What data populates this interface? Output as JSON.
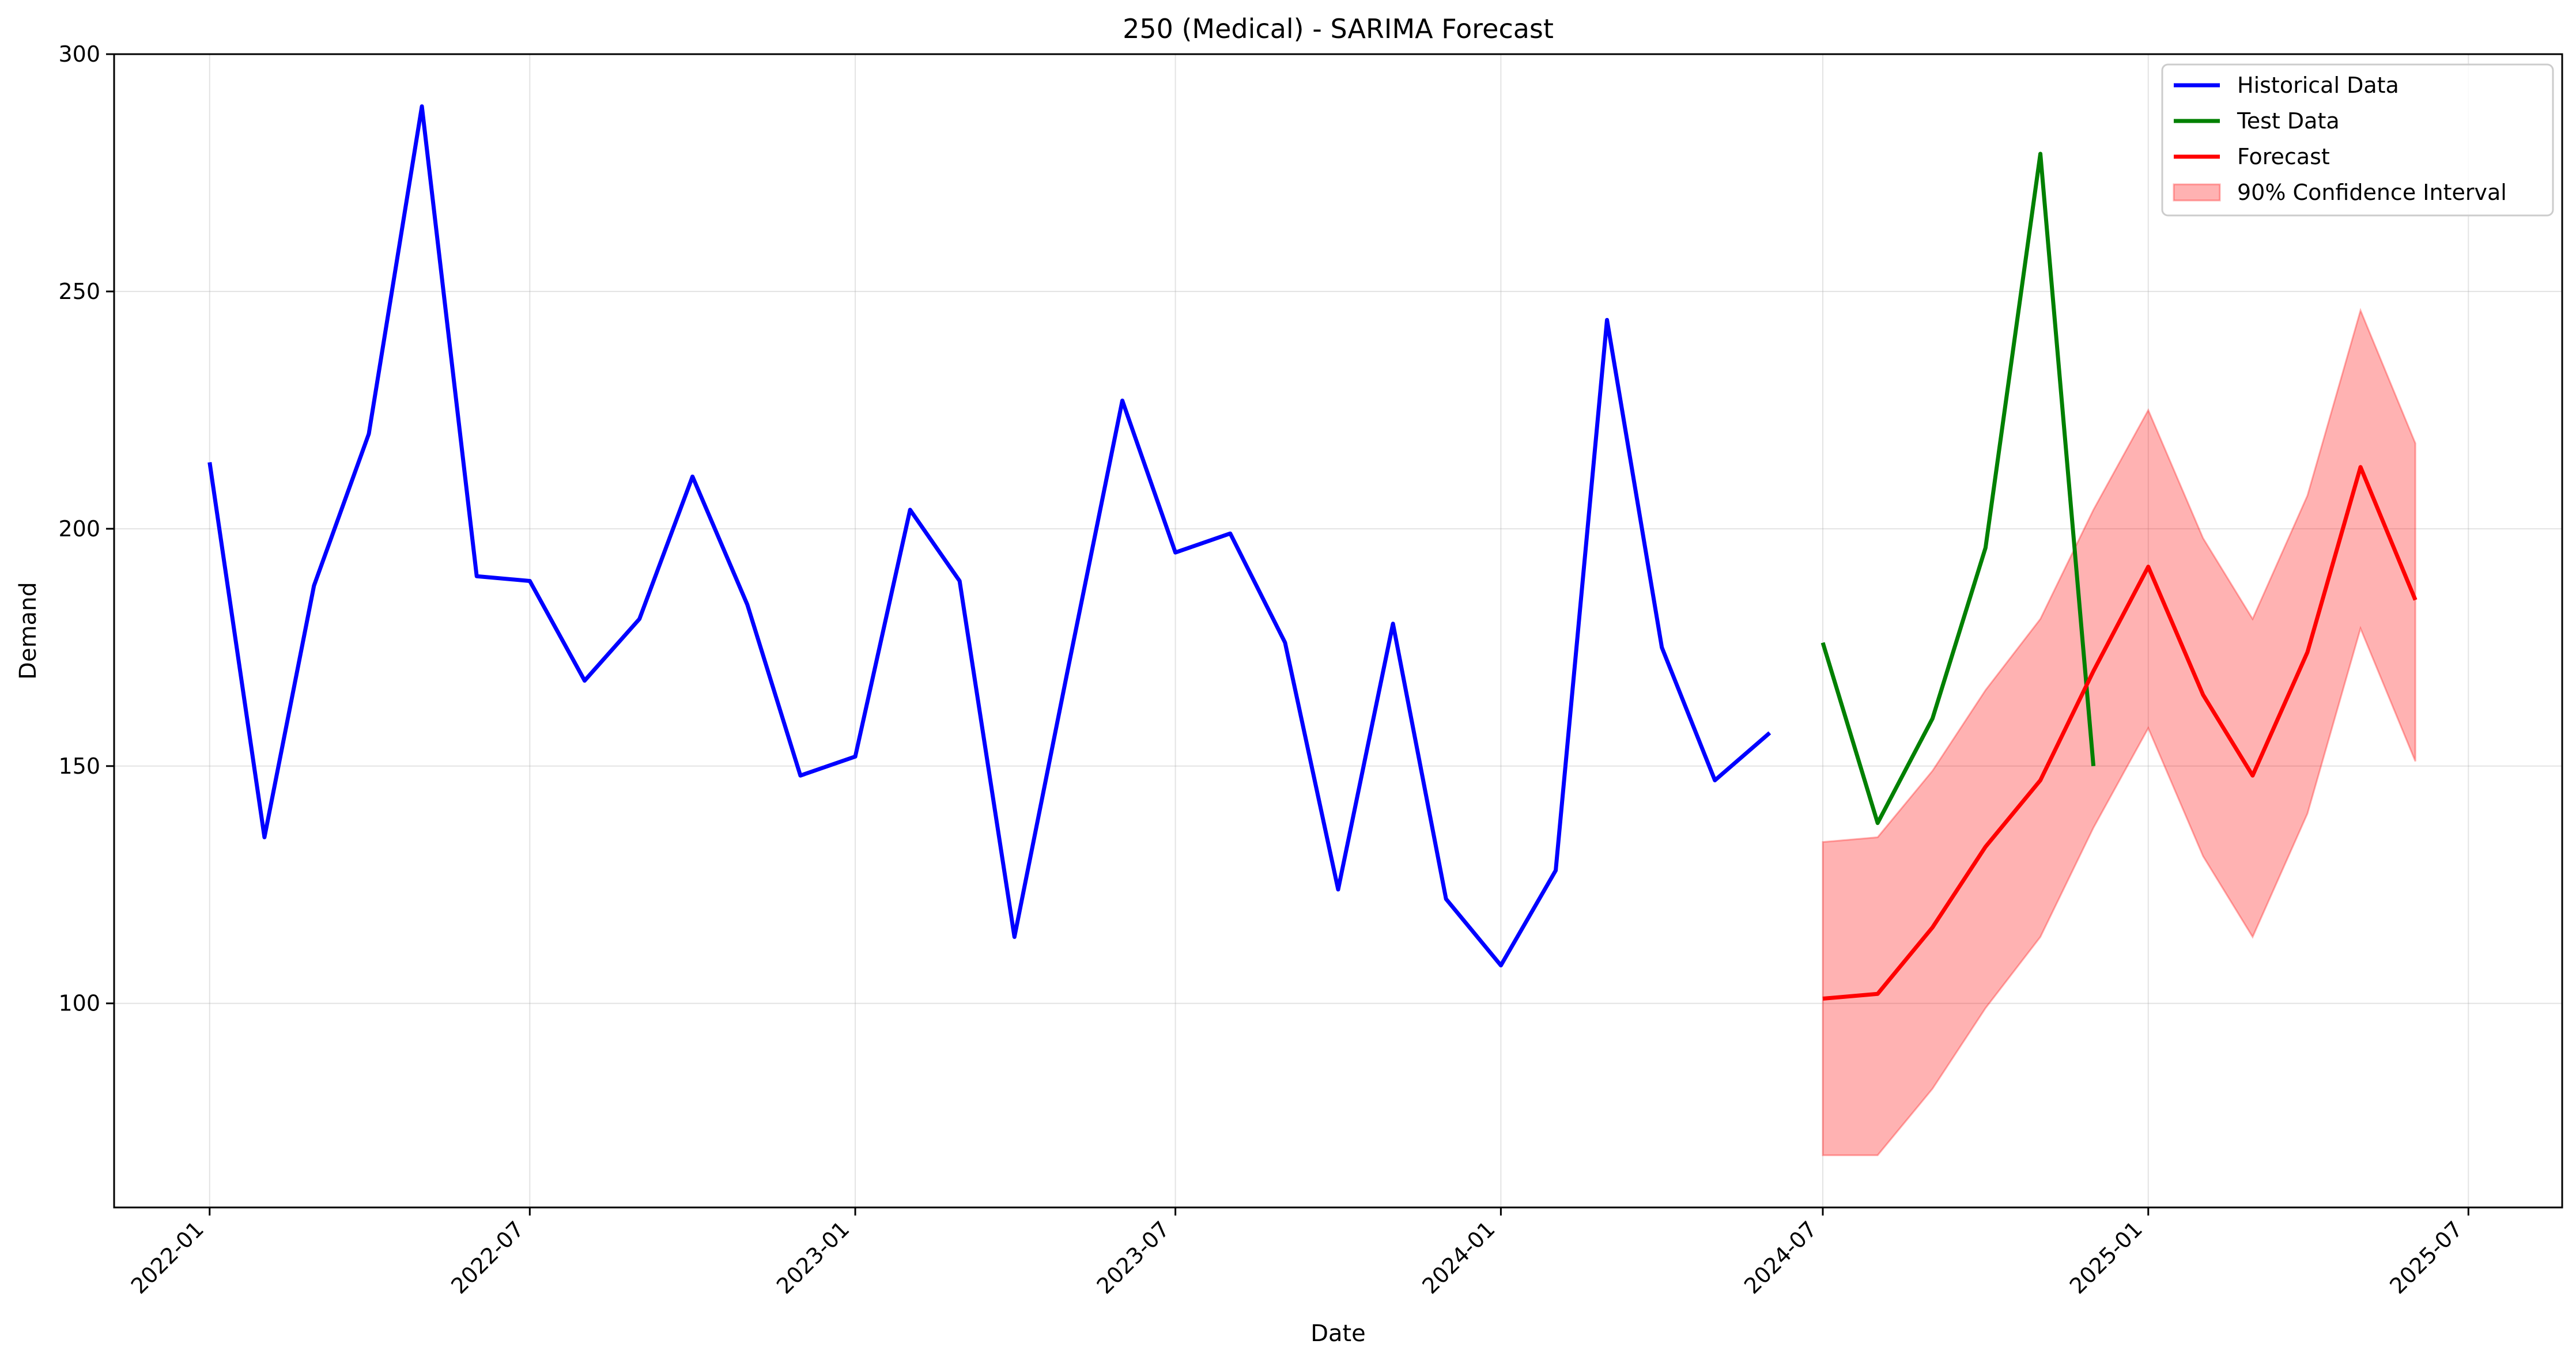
{
  "chart_data": {
    "type": "line",
    "title": "250 (Medical) - SARIMA Forecast",
    "xlabel": "Date",
    "ylabel": "Demand",
    "xlim": [
      "2021-11-08",
      "2025-08-23"
    ],
    "ylim": [
      57,
      300
    ],
    "x_ticks": [
      "2022-01",
      "2022-07",
      "2023-01",
      "2023-07",
      "2024-01",
      "2024-07",
      "2025-01",
      "2025-07"
    ],
    "y_ticks": [
      100,
      150,
      200,
      250,
      300
    ],
    "grid": true,
    "legend_position": "top-right",
    "series": [
      {
        "name": "Historical Data",
        "color": "#0000ff",
        "x": [
          "2022-01-01",
          "2022-02-01",
          "2022-03-01",
          "2022-04-01",
          "2022-05-01",
          "2022-06-01",
          "2022-07-01",
          "2022-08-01",
          "2022-09-01",
          "2022-10-01",
          "2022-11-01",
          "2022-12-01",
          "2023-01-01",
          "2023-02-01",
          "2023-03-01",
          "2023-04-01",
          "2023-05-01",
          "2023-06-01",
          "2023-07-01",
          "2023-08-01",
          "2023-09-01",
          "2023-10-01",
          "2023-11-01",
          "2023-12-01",
          "2024-01-01",
          "2024-02-01",
          "2024-03-01",
          "2024-04-01",
          "2024-05-01",
          "2024-06-01"
        ],
        "values": [
          214,
          135,
          188,
          220,
          289,
          190,
          189,
          168,
          181,
          211,
          184,
          148,
          152,
          204,
          189,
          114,
          170,
          227,
          195,
          199,
          176,
          124,
          180,
          122,
          108,
          128,
          244,
          175,
          147,
          157
        ]
      },
      {
        "name": "Test Data",
        "color": "#008000",
        "x": [
          "2024-07-01",
          "2024-08-01",
          "2024-09-01",
          "2024-10-01",
          "2024-11-01",
          "2024-12-01"
        ],
        "values": [
          176,
          138,
          160,
          196,
          279,
          150
        ]
      },
      {
        "name": "Forecast",
        "color": "#ff0000",
        "x": [
          "2024-07-01",
          "2024-08-01",
          "2024-09-01",
          "2024-10-01",
          "2024-11-01",
          "2024-12-01",
          "2025-01-01",
          "2025-02-01",
          "2025-03-01",
          "2025-04-01",
          "2025-05-01",
          "2025-06-01"
        ],
        "values": [
          101,
          102,
          116,
          133,
          147,
          170,
          192,
          165,
          148,
          174,
          213,
          185
        ]
      }
    ],
    "confidence_interval": {
      "name": "90% Confidence Interval",
      "color": "#ff0000",
      "x": [
        "2024-07-01",
        "2024-08-01",
        "2024-09-01",
        "2024-10-01",
        "2024-11-01",
        "2024-12-01",
        "2025-01-01",
        "2025-02-01",
        "2025-03-01",
        "2025-04-01",
        "2025-05-01",
        "2025-06-01"
      ],
      "lower": [
        68,
        68,
        82,
        99,
        114,
        137,
        158,
        131,
        114,
        140,
        179,
        151
      ],
      "upper": [
        134,
        135,
        149,
        166,
        181,
        204,
        225,
        198,
        181,
        207,
        246,
        218
      ]
    }
  }
}
